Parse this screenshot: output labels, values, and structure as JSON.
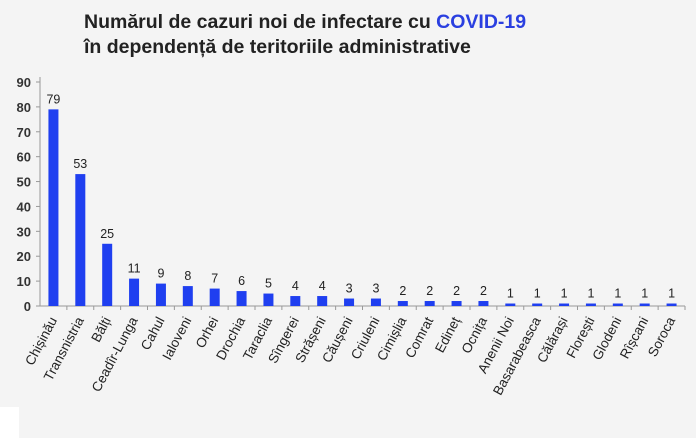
{
  "chart_data": {
    "type": "bar",
    "title_line1": "Numărul de cazuri noi de infectare cu ",
    "title_highlight": "COVID-19",
    "title_line2": "în dependență de teritoriile administrative",
    "categories": [
      "Chișinău",
      "Transnistria",
      "Bălți",
      "Ceadîr-Lunga",
      "Cahul",
      "Ialoveni",
      "Orhei",
      "Drochia",
      "Taraclia",
      "Sîngerei",
      "Strășeni",
      "Căușeni",
      "Criuleni",
      "Cimișlia",
      "Comrat",
      "Edineț",
      "Ocnița",
      "Anenii Noi",
      "Basarabeasca",
      "Călărași",
      "Florești",
      "Glodeni",
      "Rîșcani",
      "Soroca"
    ],
    "values": [
      79,
      53,
      25,
      11,
      9,
      8,
      7,
      6,
      5,
      4,
      4,
      3,
      3,
      2,
      2,
      2,
      2,
      1,
      1,
      1,
      1,
      1,
      1,
      1
    ],
    "ylim": [
      0,
      90
    ],
    "yticks": [
      0,
      10,
      20,
      30,
      40,
      50,
      60,
      70,
      80,
      90
    ],
    "grid": false,
    "bar_color": "#1f3ff0",
    "highlight_color": "#2a3fe0"
  }
}
